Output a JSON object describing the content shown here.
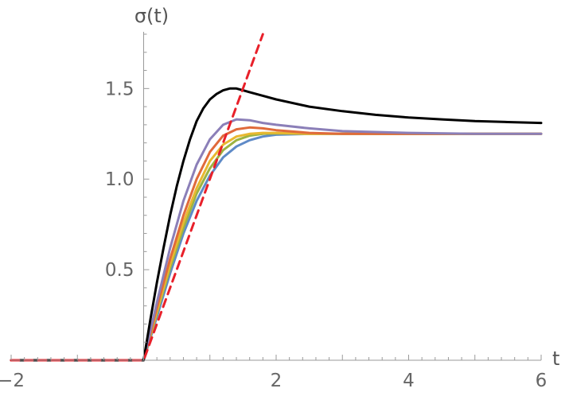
{
  "chart_data": {
    "type": "line",
    "title": "",
    "xlabel": "t",
    "ylabel": "σ(t)",
    "xlim": [
      -2,
      6
    ],
    "ylim": [
      0,
      1.8
    ],
    "x_ticks": [
      -2,
      2,
      4,
      6
    ],
    "x_tick_labels": [
      "−2",
      "2",
      "4",
      "6"
    ],
    "y_ticks": [
      0.5,
      1.0,
      1.5
    ],
    "y_tick_labels": [
      "0.5",
      "1.0",
      "1.5"
    ],
    "grid": false,
    "legend": "none",
    "series": [
      {
        "color": "#000000",
        "style": "solid",
        "x": [
          -2,
          -1,
          0,
          0.1,
          0.2,
          0.3,
          0.4,
          0.5,
          0.6,
          0.7,
          0.8,
          0.9,
          1.0,
          1.1,
          1.2,
          1.3,
          1.4,
          1.5,
          1.6,
          1.8,
          2.0,
          2.5,
          3.0,
          3.5,
          4.0,
          4.5,
          5.0,
          5.5,
          6.0
        ],
        "y": [
          0,
          0,
          0,
          0.22,
          0.43,
          0.62,
          0.8,
          0.96,
          1.1,
          1.22,
          1.32,
          1.39,
          1.44,
          1.47,
          1.49,
          1.5,
          1.5,
          1.49,
          1.48,
          1.46,
          1.44,
          1.4,
          1.375,
          1.355,
          1.34,
          1.33,
          1.32,
          1.315,
          1.31
        ]
      },
      {
        "color": "#8B7FB8",
        "style": "solid",
        "x": [
          -2,
          -1,
          0,
          0.2,
          0.4,
          0.6,
          0.8,
          1.0,
          1.2,
          1.4,
          1.6,
          1.8,
          2.0,
          2.5,
          3.0,
          3.5,
          4.0,
          5.0,
          6.0
        ],
        "y": [
          0,
          0,
          0,
          0.32,
          0.62,
          0.88,
          1.08,
          1.22,
          1.3,
          1.33,
          1.325,
          1.31,
          1.3,
          1.28,
          1.265,
          1.26,
          1.255,
          1.25,
          1.25
        ]
      },
      {
        "color": "#E06A3B",
        "style": "solid",
        "x": [
          -2,
          -1,
          0,
          0.2,
          0.4,
          0.6,
          0.8,
          1.0,
          1.2,
          1.4,
          1.6,
          1.8,
          2.0,
          2.5,
          3.0,
          4.0,
          5.0,
          6.0
        ],
        "y": [
          0,
          0,
          0,
          0.29,
          0.56,
          0.8,
          1.0,
          1.15,
          1.24,
          1.275,
          1.285,
          1.28,
          1.27,
          1.255,
          1.25,
          1.25,
          1.25,
          1.25
        ]
      },
      {
        "color": "#E8B830",
        "style": "solid",
        "x": [
          -2,
          -1,
          0,
          0.2,
          0.4,
          0.6,
          0.8,
          1.0,
          1.2,
          1.4,
          1.6,
          1.8,
          2.0,
          2.5,
          3.0,
          4.0,
          5.0,
          6.0
        ],
        "y": [
          0,
          0,
          0,
          0.27,
          0.53,
          0.76,
          0.95,
          1.1,
          1.19,
          1.235,
          1.25,
          1.255,
          1.255,
          1.25,
          1.25,
          1.25,
          1.25,
          1.25
        ]
      },
      {
        "color": "#9CB342",
        "style": "solid",
        "x": [
          -2,
          -1,
          0,
          0.2,
          0.4,
          0.6,
          0.8,
          1.0,
          1.2,
          1.4,
          1.6,
          1.8,
          2.0,
          2.5,
          3.0,
          4.0,
          5.0,
          6.0
        ],
        "y": [
          0,
          0,
          0,
          0.26,
          0.51,
          0.73,
          0.92,
          1.06,
          1.16,
          1.215,
          1.24,
          1.25,
          1.252,
          1.25,
          1.25,
          1.25,
          1.25,
          1.25
        ]
      },
      {
        "color": "#5E8AC7",
        "style": "solid",
        "x": [
          -2,
          -1,
          0,
          0.2,
          0.4,
          0.6,
          0.8,
          1.0,
          1.2,
          1.4,
          1.6,
          1.8,
          2.0,
          2.5,
          3.0,
          4.0,
          5.0,
          6.0
        ],
        "y": [
          0,
          0,
          0,
          0.24,
          0.48,
          0.7,
          0.88,
          1.02,
          1.12,
          1.18,
          1.215,
          1.235,
          1.245,
          1.25,
          1.25,
          1.25,
          1.25,
          1.25
        ]
      },
      {
        "color": "#E8202A",
        "style": "dashed",
        "x": [
          -2,
          0,
          1.8
        ],
        "y": [
          0,
          0,
          1.8
        ]
      }
    ]
  }
}
